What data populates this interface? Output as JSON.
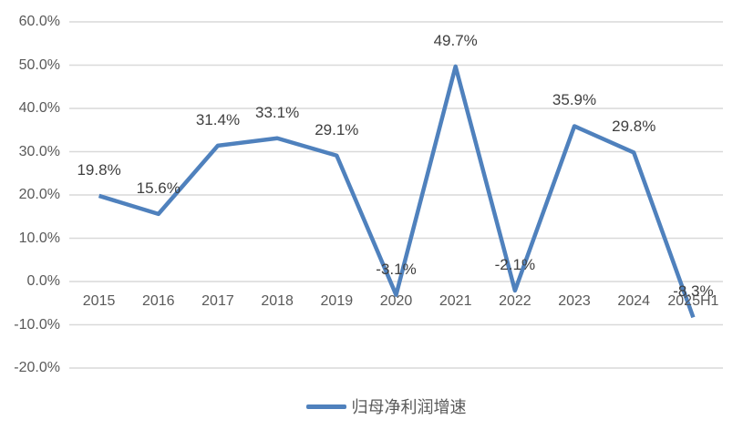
{
  "chart_data": {
    "type": "line",
    "title": "",
    "categories": [
      "2015",
      "2016",
      "2017",
      "2018",
      "2019",
      "2020",
      "2021",
      "2022",
      "2023",
      "2024",
      "2025H1"
    ],
    "series": [
      {
        "name": "归母净利润增速",
        "values": [
          19.8,
          15.6,
          31.4,
          33.1,
          29.1,
          -3.1,
          49.7,
          -2.1,
          35.9,
          29.8,
          -8.3
        ]
      }
    ],
    "data_labels": [
      "19.8%",
      "15.6%",
      "31.4%",
      "33.1%",
      "29.1%",
      "-3.1%",
      "49.7%",
      "-2.1%",
      "35.9%",
      "29.8%",
      "-8.3%"
    ],
    "y_axis": {
      "tick_labels": [
        "60.0%",
        "50.0%",
        "40.0%",
        "30.0%",
        "20.0%",
        "10.0%",
        "0.0%",
        "-10.0%",
        "-20.0%"
      ],
      "tick_values": [
        60,
        50,
        40,
        30,
        20,
        10,
        0,
        -10,
        -20
      ]
    },
    "ylim": [
      -20,
      60
    ],
    "grid": true,
    "legend": {
      "position": "bottom",
      "label": "归母净利润增速"
    },
    "colors": {
      "line": "#4F81BD",
      "gridline": "#D9D9D9",
      "axis_text": "#595959",
      "label_text": "#3F3F3F",
      "background": "#FFFFFF"
    }
  }
}
